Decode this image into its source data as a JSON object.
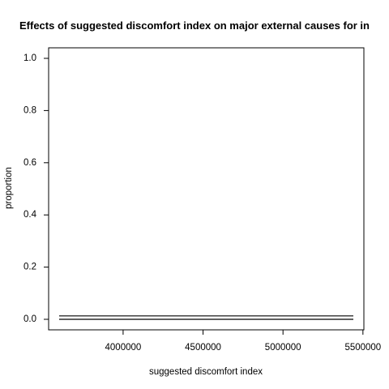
{
  "chart_data": {
    "type": "line",
    "title": "Effects of suggested discomfort index on major external causes for in",
    "xlabel": "suggested discomfort index",
    "ylabel": "proportion",
    "xlim": [
      3600000,
      5440000
    ],
    "ylim": [
      0,
      1
    ],
    "xticks": [
      4000000,
      4500000,
      5000000,
      5500000
    ],
    "xtick_labels": [
      "4000000",
      "4500000",
      "5000000",
      "5500000"
    ],
    "yticks": [
      0.0,
      0.2,
      0.4,
      0.6,
      0.8,
      1.0
    ],
    "ytick_labels": [
      "0.0",
      "0.2",
      "0.4",
      "0.6",
      "0.8",
      "1.0"
    ],
    "grid": false,
    "series": [
      {
        "values": [
          0.013,
          0.013
        ],
        "x": [
          3600000,
          5440000
        ],
        "color": "#000000"
      },
      {
        "values": [
          0.0,
          0.0
        ],
        "x": [
          3600000,
          5440000
        ],
        "color": "#000000"
      }
    ]
  }
}
